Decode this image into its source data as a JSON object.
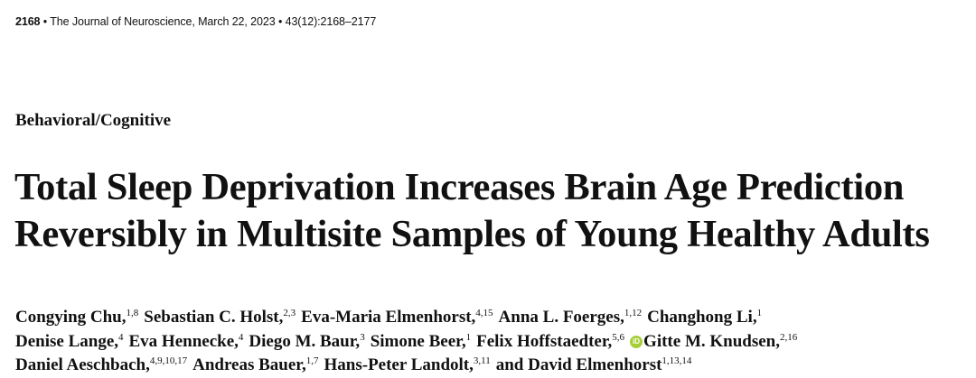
{
  "running_head": {
    "page_number": "2168",
    "bullet1": "•",
    "journal": "The Journal of Neuroscience, March 22, 2023",
    "bullet2": "•",
    "volume": "43(12):2168–2177"
  },
  "section": "Behavioral/Cognitive",
  "title": {
    "line1": "Total Sleep Deprivation Increases Brain Age Prediction",
    "line2": "Reversibly in Multisite Samples of Young Healthy Adults"
  },
  "authors": [
    [
      {
        "name": "Congying Chu,",
        "aff": "1,8"
      },
      {
        "name": "Sebastian C. Holst,",
        "aff": "2,3"
      },
      {
        "name": "Eva-Maria Elmenhorst,",
        "aff": "4,15"
      },
      {
        "name": "Anna L. Foerges,",
        "aff": "1,12"
      },
      {
        "name": "Changhong Li,",
        "aff": "1"
      }
    ],
    [
      {
        "name": "Denise Lange,",
        "aff": "4"
      },
      {
        "name": "Eva Hennecke,",
        "aff": "4"
      },
      {
        "name": "Diego M. Baur,",
        "aff": "3"
      },
      {
        "name": "Simone Beer,",
        "aff": "1"
      },
      {
        "name": "Felix Hoffstaedter,",
        "aff": "5,6"
      },
      {
        "name": "Gitte M. Knudsen,",
        "aff": "2,16",
        "orcid": true
      }
    ],
    [
      {
        "name": "Daniel Aeschbach,",
        "aff": "4,9,10,17"
      },
      {
        "name": "Andreas Bauer,",
        "aff": "1,7"
      },
      {
        "name": "Hans-Peter Landolt,",
        "aff": "3,11"
      },
      {
        "name": "and David Elmenhorst",
        "aff": "1,13,14"
      }
    ]
  ],
  "orcid_icon": {
    "icon": "orcid-icon",
    "glyph": "iD",
    "color": "#a6ce39"
  }
}
